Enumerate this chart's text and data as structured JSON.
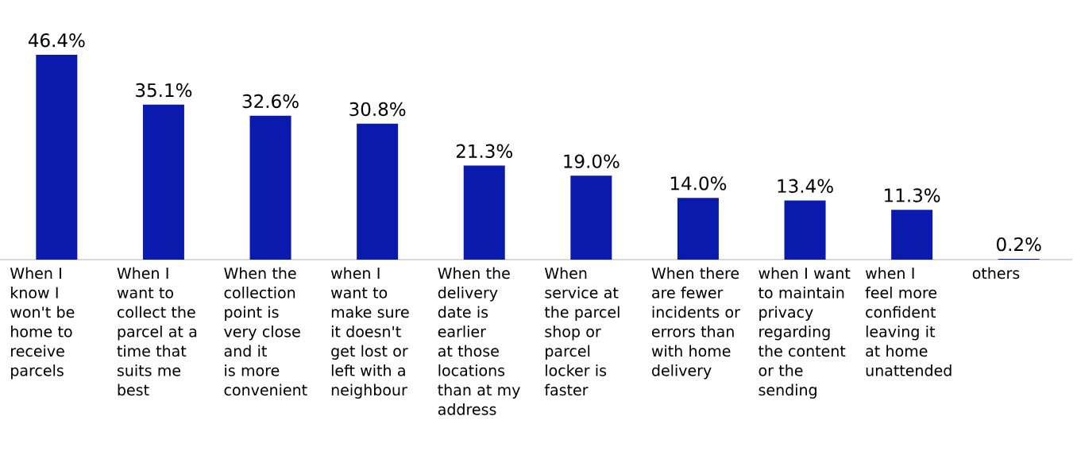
{
  "chart_data": {
    "type": "bar",
    "categories": [
      "When I know I won't be home to receive parcels",
      "When I want to collect the parcel at a time that suits me best",
      "When the collection point is very close and it is more convenient",
      "when I want to make sure it doesn't get lost or left with a neighbour",
      "When the delivery date is earlier at those locations than at my address",
      "When service at the parcel shop or parcel locker is faster",
      "When there are fewer incidents or errors than with home delivery",
      "when I want to maintain privacy regarding the content or the sending",
      "when I feel more confident leaving it at home unattended",
      "others"
    ],
    "values": [
      46.4,
      35.1,
      32.6,
      30.8,
      21.3,
      19.0,
      14.0,
      13.4,
      11.3,
      0.2
    ],
    "value_labels": [
      "46.4%",
      "35.1%",
      "32.6%",
      "30.8%",
      "21.3%",
      "19.0%",
      "14.0%",
      "13.4%",
      "11.3%",
      "0.2%"
    ],
    "color": "#0a1aad"
  }
}
